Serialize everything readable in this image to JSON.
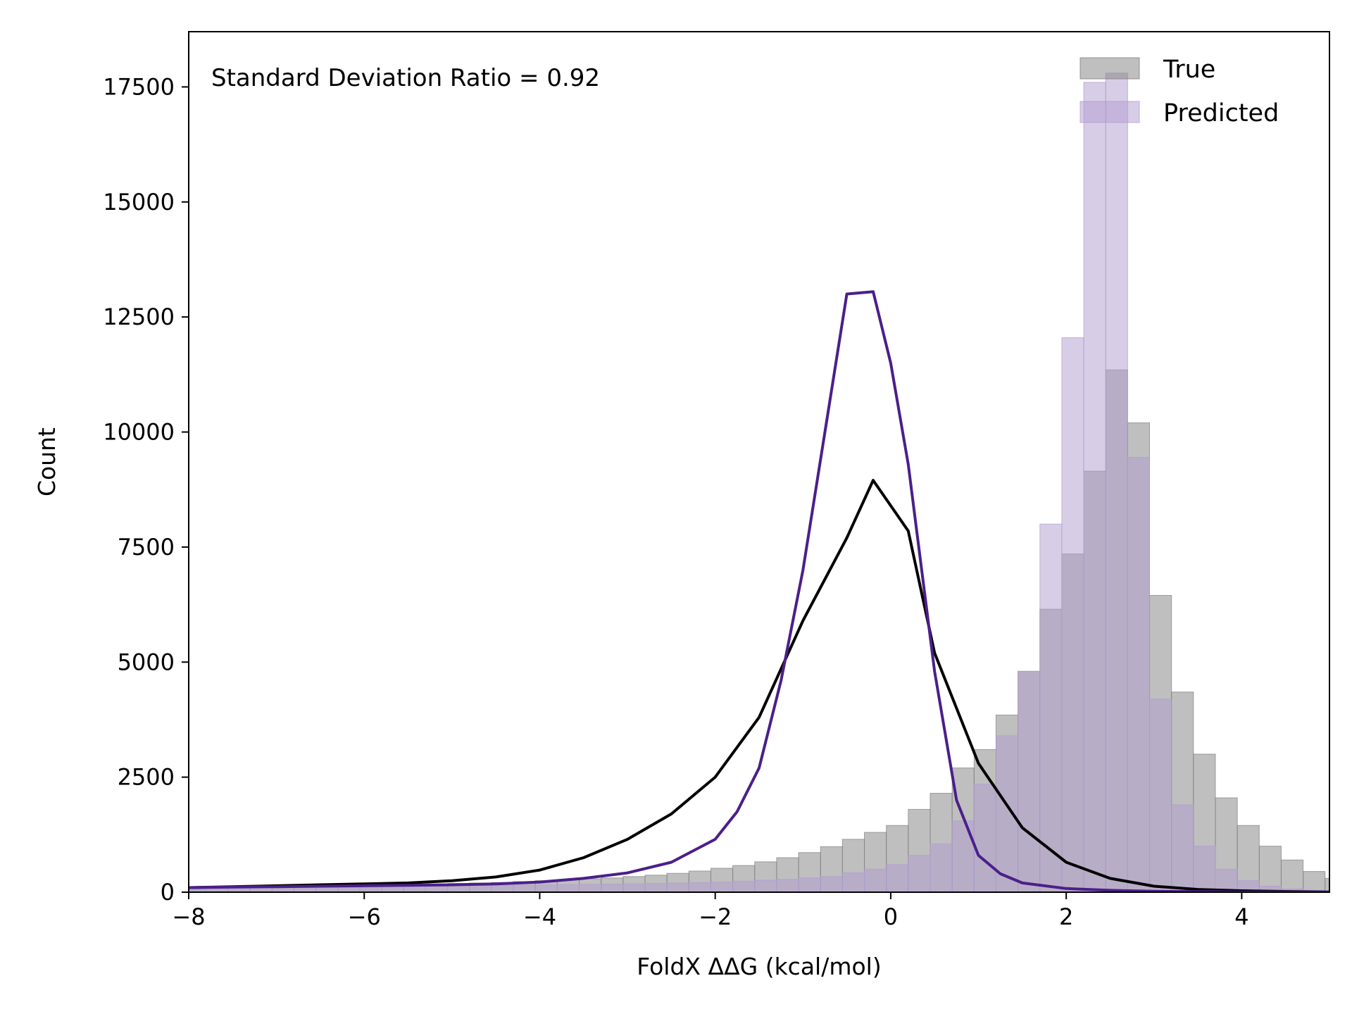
{
  "chart_data": {
    "type": "bar",
    "xlabel": "FoldX ΔΔG (kcal/mol)",
    "ylabel": "Count",
    "xlim": [
      -8,
      5
    ],
    "ylim": [
      0,
      18700
    ],
    "xticks": [
      -8,
      -6,
      -4,
      -2,
      0,
      2,
      4
    ],
    "xtick_labels": [
      "−8",
      "−6",
      "−4",
      "−2",
      "0",
      "2",
      "4"
    ],
    "yticks": [
      0,
      2500,
      5000,
      7500,
      10000,
      12500,
      15000,
      17500
    ],
    "ytick_labels": [
      "0",
      "2500",
      "5000",
      "7500",
      "10000",
      "12500",
      "15000",
      "17500"
    ],
    "annotation": "Standard Deviation Ratio = 0.92",
    "legend_position": "top-right",
    "bin_width": 0.25,
    "bin_start": -8.05,
    "series": [
      {
        "name": "True",
        "bar_color": "#808080",
        "line_color": "#000000",
        "bar_opacity": 0.5,
        "values": [
          80,
          90,
          100,
          110,
          110,
          120,
          130,
          140,
          150,
          160,
          170,
          180,
          190,
          200,
          210,
          230,
          250,
          270,
          290,
          310,
          340,
          370,
          410,
          460,
          520,
          580,
          660,
          750,
          860,
          990,
          1150,
          1300,
          1450,
          1800,
          2150,
          2700,
          3100,
          3850,
          4800,
          6150,
          7350,
          9150,
          11350,
          10200,
          6450,
          4350,
          3000,
          2050,
          1450,
          1000,
          700,
          450,
          300,
          180,
          120,
          80,
          50,
          30,
          20,
          15,
          10,
          8,
          5,
          3,
          2
        ]
      },
      {
        "name": "Predicted",
        "bar_color": "#b19cd0",
        "line_color": "#4b1f8a",
        "bar_opacity": 0.5,
        "values": [
          80,
          85,
          90,
          95,
          100,
          105,
          110,
          115,
          120,
          125,
          130,
          135,
          140,
          145,
          150,
          155,
          160,
          165,
          170,
          175,
          180,
          190,
          200,
          210,
          220,
          240,
          260,
          280,
          310,
          340,
          420,
          500,
          600,
          800,
          1050,
          1550,
          2350,
          3400,
          4800,
          8000,
          12050,
          17600,
          17800,
          9450,
          4200,
          1900,
          1000,
          500,
          250,
          130,
          70,
          40,
          25,
          15,
          10,
          8,
          5,
          3,
          2,
          2,
          1,
          1,
          1,
          1,
          1
        ]
      }
    ],
    "density_lines": [
      {
        "series": "True",
        "x": [
          -8,
          -7.5,
          -7,
          -6.5,
          -6,
          -5.5,
          -5,
          -4.5,
          -4,
          -3.5,
          -3,
          -2.5,
          -2,
          -1.5,
          -1,
          -0.5,
          -0.2,
          0.2,
          0.5,
          1,
          1.5,
          2,
          2.5,
          3,
          3.5,
          4,
          4.5,
          5
        ],
        "y": [
          100,
          120,
          140,
          160,
          180,
          200,
          250,
          330,
          480,
          750,
          1150,
          1700,
          2500,
          3800,
          5900,
          7700,
          8950,
          7850,
          5200,
          2800,
          1400,
          650,
          300,
          130,
          60,
          30,
          15,
          5
        ]
      },
      {
        "series": "Predicted",
        "x": [
          -8,
          -7.5,
          -7,
          -6.5,
          -6,
          -5.5,
          -5,
          -4.5,
          -4,
          -3.5,
          -3,
          -2.5,
          -2,
          -1.75,
          -1.5,
          -1.25,
          -1,
          -0.75,
          -0.5,
          -0.2,
          0,
          0.2,
          0.5,
          0.75,
          1,
          1.25,
          1.5,
          2,
          2.5,
          3,
          3.5,
          4,
          5
        ],
        "y": [
          100,
          110,
          120,
          130,
          140,
          150,
          160,
          180,
          220,
          300,
          420,
          650,
          1150,
          1750,
          2700,
          4600,
          7000,
          10000,
          13000,
          13050,
          11500,
          9300,
          4800,
          2000,
          800,
          400,
          200,
          80,
          40,
          20,
          10,
          5,
          2
        ]
      }
    ]
  }
}
